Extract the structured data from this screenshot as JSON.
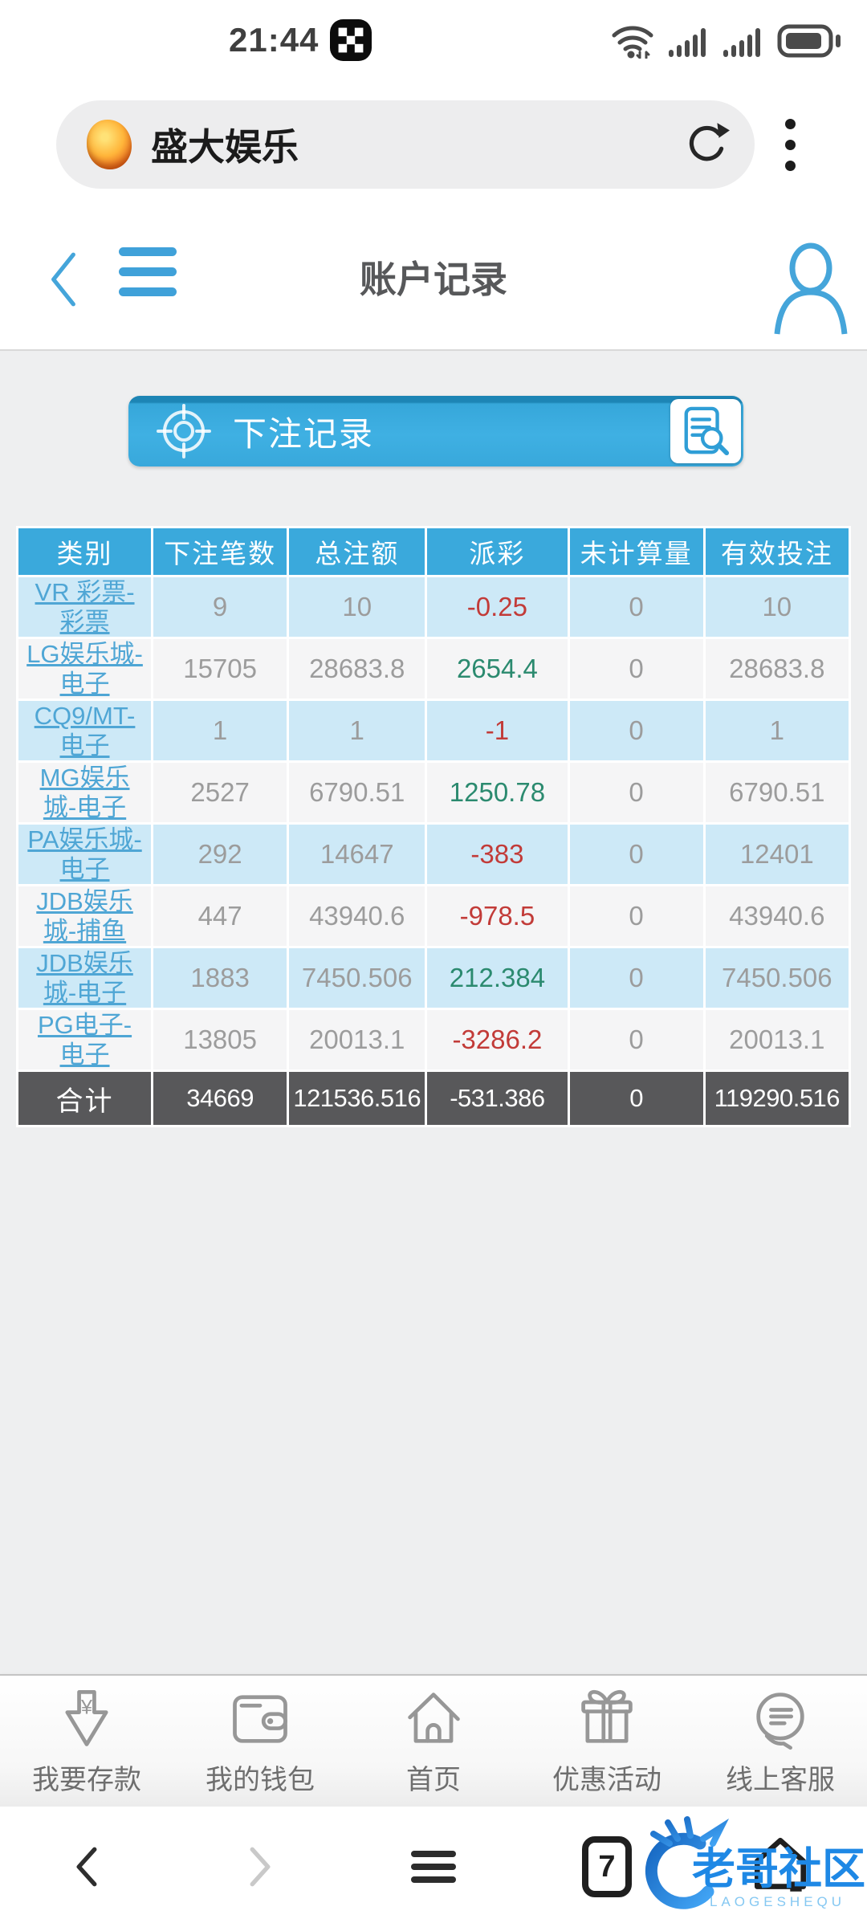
{
  "status_bar": {
    "time": "21:44",
    "icons": [
      "checkered-app-icon",
      "wifi-icon",
      "signal-icon",
      "signal-icon",
      "battery-icon"
    ]
  },
  "url_bar": {
    "site_title": "盛大娱乐",
    "icons": [
      "site-favicon",
      "refresh-icon",
      "kebab-menu-icon"
    ]
  },
  "app_header": {
    "title": "账户记录",
    "icons": [
      "back-chevron-icon",
      "hamburger-icon",
      "user-icon"
    ]
  },
  "banner": {
    "label": "下注记录",
    "icons": [
      "crosshair-icon",
      "doc-search-icon"
    ]
  },
  "colors": {
    "accent_blue": "#3aa9dc",
    "link_blue": "#4fa6d5",
    "negative_red": "#c23b38",
    "positive_green": "#2b8a6f",
    "total_row_bg": "#58585a"
  },
  "table": {
    "headers": [
      "类别",
      "下注笔数",
      "总注额",
      "派彩",
      "未计算量",
      "有效投注"
    ],
    "rows": [
      {
        "category": "VR 彩票-彩票",
        "category_lines": [
          "VR 彩票-",
          "彩票"
        ],
        "bets": "9",
        "total_bet": "10",
        "payout": "-0.25",
        "payout_tone": "neg",
        "uncalculated": "0",
        "valid_bet": "10"
      },
      {
        "category": "LG娱乐城-电子",
        "category_lines": [
          "LG娱乐城-",
          "电子"
        ],
        "bets": "15705",
        "total_bet": "28683.8",
        "payout": "2654.4",
        "payout_tone": "pos",
        "uncalculated": "0",
        "valid_bet": "28683.8"
      },
      {
        "category": "CQ9/MT-电子",
        "category_lines": [
          "CQ9/MT-",
          "电子"
        ],
        "bets": "1",
        "total_bet": "1",
        "payout": "-1",
        "payout_tone": "neg",
        "uncalculated": "0",
        "valid_bet": "1"
      },
      {
        "category": "MG娱乐城-电子",
        "category_lines": [
          "MG娱乐",
          "城-电子"
        ],
        "bets": "2527",
        "total_bet": "6790.51",
        "payout": "1250.78",
        "payout_tone": "pos",
        "uncalculated": "0",
        "valid_bet": "6790.51"
      },
      {
        "category": "PA娱乐城-电子",
        "category_lines": [
          "PA娱乐城-",
          "电子"
        ],
        "bets": "292",
        "total_bet": "14647",
        "payout": "-383",
        "payout_tone": "neg",
        "uncalculated": "0",
        "valid_bet": "12401"
      },
      {
        "category": "JDB娱乐城-捕鱼",
        "category_lines": [
          "JDB娱乐",
          "城-捕鱼"
        ],
        "bets": "447",
        "total_bet": "43940.6",
        "payout": "-978.5",
        "payout_tone": "neg",
        "uncalculated": "0",
        "valid_bet": "43940.6"
      },
      {
        "category": "JDB娱乐城-电子",
        "category_lines": [
          "JDB娱乐",
          "城-电子"
        ],
        "bets": "1883",
        "total_bet": "7450.506",
        "payout": "212.384",
        "payout_tone": "pos",
        "uncalculated": "0",
        "valid_bet": "7450.506"
      },
      {
        "category": "PG电子-电子",
        "category_lines": [
          "PG电子-",
          "电子"
        ],
        "bets": "13805",
        "total_bet": "20013.1",
        "payout": "-3286.2",
        "payout_tone": "neg",
        "uncalculated": "0",
        "valid_bet": "20013.1"
      }
    ],
    "total_row": {
      "label": "合计",
      "bets": "34669",
      "total_bet": "121536.516",
      "payout": "-531.386",
      "uncalculated": "0",
      "valid_bet": "119290.516"
    }
  },
  "footer_nav": {
    "items": [
      {
        "label": "我要存款",
        "icon": "deposit-arrow-icon"
      },
      {
        "label": "我的钱包",
        "icon": "wallet-icon"
      },
      {
        "label": "首页",
        "icon": "home-icon"
      },
      {
        "label": "优惠活动",
        "icon": "gift-icon"
      },
      {
        "label": "线上客服",
        "icon": "service-icon"
      }
    ]
  },
  "browser_bar": {
    "tab_count": "7",
    "icons": [
      "back-chevron-icon",
      "forward-chevron-icon",
      "hamburger-icon",
      "tab-counter",
      "home-icon"
    ]
  },
  "watermark": {
    "title": "老哥社区",
    "subtitle": "LAOGESHEQU"
  }
}
